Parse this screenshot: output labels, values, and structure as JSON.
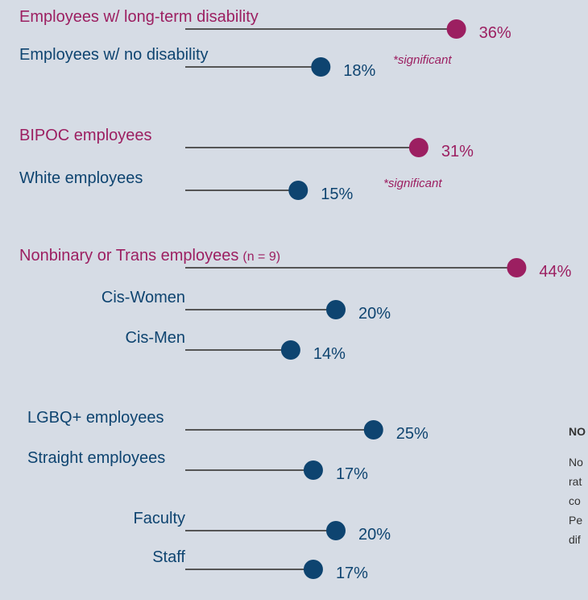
{
  "chart_data": {
    "type": "lollipop",
    "categories": [
      "Employees w/ long-term disability",
      "Employees w/ no disability",
      "BIPOC employees",
      "White employees",
      "Nonbinary or Trans employees",
      "Cis-Women",
      "Cis-Men",
      "LGBQ+ employees",
      "Straight employees",
      "Faculty",
      "Staff"
    ],
    "category_note": "(n = 9)",
    "values": [
      36,
      18,
      31,
      15,
      44,
      20,
      14,
      25,
      17,
      20,
      17
    ],
    "value_labels": [
      "36%",
      "18%",
      "31%",
      "15%",
      "44%",
      "20%",
      "14%",
      "25%",
      "17%",
      "20%",
      "17%"
    ],
    "colors": [
      "#9c1f61",
      "#0e4470",
      "#9c1f61",
      "#0e4470",
      "#9c1f61",
      "#0e4470",
      "#0e4470",
      "#0e4470",
      "#0e4470",
      "#0e4470",
      "#0e4470"
    ],
    "annotations": [
      "*significant",
      "*significant"
    ],
    "note": {
      "heading": "NO",
      "lines": [
        "No",
        "rat",
        "co",
        "Pe",
        "dif"
      ]
    }
  }
}
